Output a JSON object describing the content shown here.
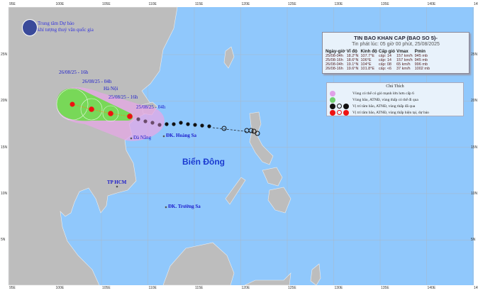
{
  "agency": {
    "line1": "Trung tâm Dự báo",
    "line2": "khí tượng thuỷ văn quốc gia"
  },
  "bulletin": {
    "title": "TIN BAO KHAN CAP (BAO SO 5)-",
    "issued": "Tin phát lúc: 05 giờ 00 phút, 25/08/2025",
    "headers": [
      "Ngày-giờ",
      "Vĩ độ",
      "Kinh độ",
      "Cấp gió",
      "Vmax",
      "Pmin"
    ],
    "rows": [
      [
        "25/08-04h",
        "18.2°N",
        "107.7°E",
        "cấp: 14",
        "157 km/h",
        "945 mb"
      ],
      [
        "25/08-16h",
        "18.6°N",
        "106°E",
        "cấp: 14",
        "157 km/h",
        "945 mb"
      ],
      [
        "26/08-04h",
        "19.1°N",
        "104°E",
        "cấp: 08",
        "65 km/h",
        "996 mb"
      ],
      [
        "26/08-16h",
        "19.6°N",
        "101.8°E",
        "cấp: <6",
        "37 km/h",
        "1002 mb"
      ]
    ]
  },
  "legend": {
    "title": "Chú Thích",
    "items": [
      {
        "text": "Vùng có thể có gió mạnh lớn hơn cấp 6",
        "color": "#e0a0e8"
      },
      {
        "text": "Vùng bão, ATNĐ, vùng thấp có thể đi qua",
        "color": "#70d070"
      },
      {
        "text": "Vị trí tâm bão, ATNĐ, vùng thấp đã qua",
        "color": "#111111"
      },
      {
        "text": "Vị trí tâm bão, ATNĐ, vùng thấp hiện tại, dự báo",
        "color": "#ee1111"
      }
    ]
  },
  "places": {
    "hanoi": "Hà Nội",
    "danang": "Đà Nẵng",
    "hoangsa": "ĐK. Hoàng Sa",
    "truongsa": "ĐK. Trường Sa",
    "hcm": "TP HCM",
    "sea": "Biển Đông"
  },
  "forecast_labels": [
    "25/08/25 - 04h",
    "25/08/25 - 16h",
    "26/08/25 - 04h",
    "26/08/25 - 16h"
  ],
  "lon_ticks": [
    "95E",
    "100E",
    "105E",
    "110E",
    "115E",
    "120E",
    "125E",
    "130E",
    "135E",
    "140E",
    "145E"
  ],
  "lat_ticks": [
    "25N",
    "20N",
    "15N",
    "10N",
    "5N"
  ],
  "colors": {
    "sea": "#90c8fc",
    "land": "#bdbdbd",
    "wind_zone": "#e6a8e6",
    "storm_zone": "#78d858",
    "forecast": "#ee1111",
    "past": "#111111"
  }
}
